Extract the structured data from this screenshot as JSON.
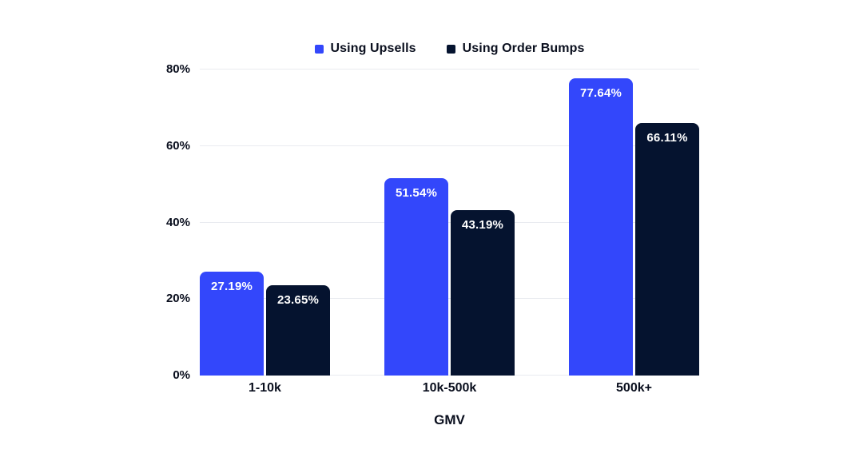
{
  "page": {
    "background_color": "#ffffff",
    "text_color": "#0a0f1e"
  },
  "chart_data": {
    "type": "bar",
    "title": "",
    "categories": [
      "1-10k",
      "10k-500k",
      "500k+"
    ],
    "series": [
      {
        "name": "Using Upsells",
        "color": "#3347fb",
        "values": [
          27.19,
          51.54,
          77.64
        ],
        "value_labels": [
          "27.19%",
          "51.54%",
          "77.64%"
        ]
      },
      {
        "name": "Using Order Bumps",
        "color": "#05132f",
        "values": [
          23.65,
          43.19,
          66.11
        ],
        "value_labels": [
          "23.65%",
          "43.19%",
          "66.11%"
        ]
      }
    ],
    "xlabel": "GMV",
    "ylabel": "",
    "ylim": [
      0,
      80
    ],
    "yticks": [
      0,
      20,
      40,
      60,
      80
    ],
    "ytick_labels": [
      "0%",
      "20%",
      "40%",
      "60%",
      "80%"
    ],
    "grid": true,
    "gridline_color": "#e9ebf0",
    "legend_position": "top",
    "value_label_color": "#ffffff"
  }
}
